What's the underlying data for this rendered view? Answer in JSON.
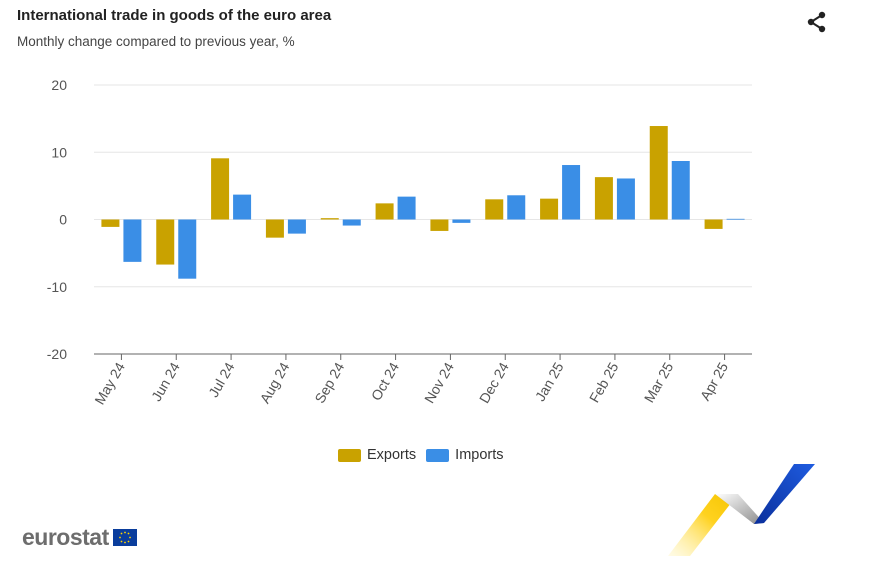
{
  "header": {
    "title": "International trade in goods of the euro area",
    "subtitle": "Monthly change compared to previous year, %"
  },
  "icons": {
    "share": "share-icon",
    "flag": "eu-flag-icon"
  },
  "logo": {
    "text": "eurostat"
  },
  "colors": {
    "exports": "#c9a200",
    "imports": "#3a8ee6",
    "grid": "#e6e6e6",
    "axis": "#666666",
    "tick_text": "#555555"
  },
  "chart_data": {
    "type": "bar",
    "title": "International trade in goods of the euro area",
    "subtitle": "Monthly change compared to previous year, %",
    "categories": [
      "May 24",
      "Jun 24",
      "Jul 24",
      "Aug 24",
      "Sep 24",
      "Oct 24",
      "Nov 24",
      "Dec 24",
      "Jan 25",
      "Feb 25",
      "Mar 25",
      "Apr 25"
    ],
    "series": [
      {
        "name": "Exports",
        "values": [
          -1.1,
          -6.7,
          9.1,
          -2.7,
          0.2,
          2.4,
          -1.7,
          3.0,
          3.1,
          6.3,
          13.9,
          -1.4
        ]
      },
      {
        "name": "Imports",
        "values": [
          -6.3,
          -8.8,
          3.7,
          -2.1,
          -0.9,
          3.4,
          -0.5,
          3.6,
          8.1,
          6.1,
          8.7,
          0.1
        ]
      }
    ],
    "yticks": [
      20,
      10,
      0,
      -10,
      -20
    ],
    "ylim": [
      -20,
      20
    ],
    "grid": true,
    "legend": "bottom-center"
  }
}
